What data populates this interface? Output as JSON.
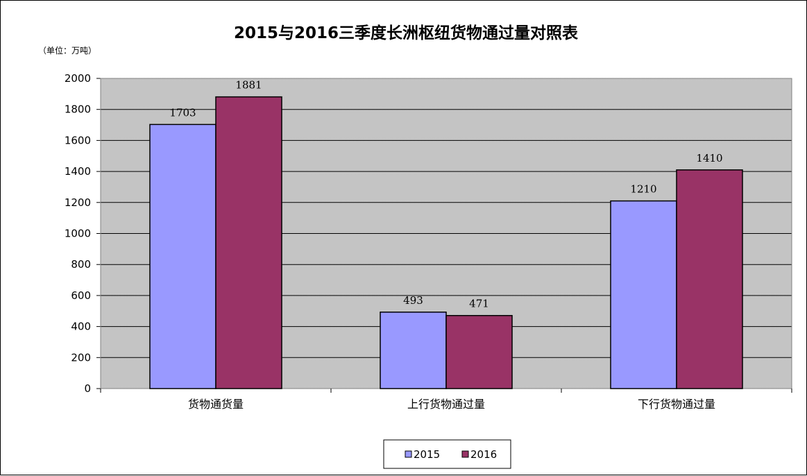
{
  "chart_data": {
    "type": "bar",
    "title": "2015与2016三季度长洲枢纽货物通过量对照表",
    "unit_note": "（单位：万吨）",
    "categories": [
      "货物通货量",
      "上行货物通过量",
      "下行货物通过量"
    ],
    "series": [
      {
        "name": "2015",
        "values": [
          1703,
          493,
          1210
        ],
        "color": "#9999ff"
      },
      {
        "name": "2016",
        "values": [
          1881,
          471,
          1410
        ],
        "color": "#993366"
      }
    ],
    "ylim": [
      0,
      2000
    ],
    "yticks": [
      0,
      200,
      400,
      600,
      800,
      1000,
      1200,
      1400,
      1600,
      1800,
      2000
    ],
    "grid": true,
    "legend_position": "bottom",
    "plot_background": "#c8c8c8"
  }
}
